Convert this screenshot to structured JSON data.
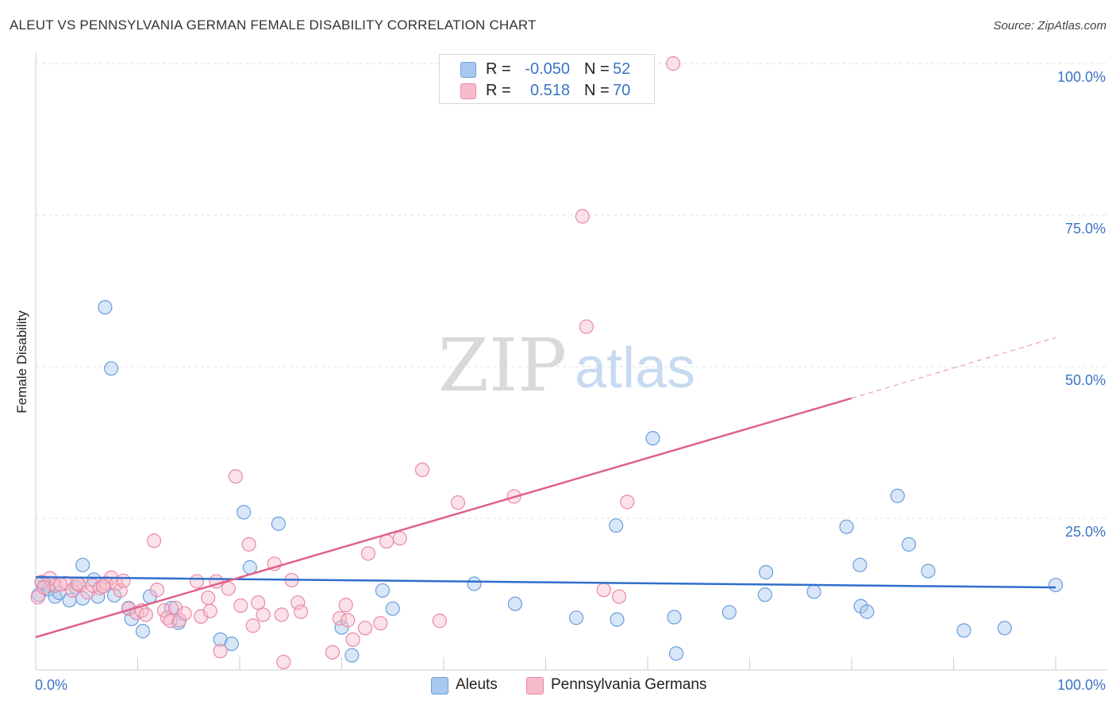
{
  "title": "ALEUT VS PENNSYLVANIA GERMAN FEMALE DISABILITY CORRELATION CHART",
  "source": "Source: ZipAtlas.com",
  "watermark": {
    "zip": "ZIP",
    "atlas": "atlas"
  },
  "legend": {
    "rows": [
      {
        "r_label": "R =",
        "r_value": "-0.050",
        "n_label": "N =",
        "n_value": "52",
        "color": "#a9c8f0",
        "edge": "#6a9fdc"
      },
      {
        "r_label": "R =",
        "r_value": "0.518",
        "n_label": "N =",
        "n_value": "70",
        "color": "#f7bccc",
        "edge": "#e989a6"
      }
    ]
  },
  "bottom_legend": [
    {
      "label": "Aleuts",
      "color": "#a9c8f0",
      "edge": "#6a9fdc"
    },
    {
      "label": "Pennsylvania Germans",
      "color": "#f7bccc",
      "edge": "#e989a6"
    }
  ],
  "chart_data": {
    "type": "scatter",
    "title": "ALEUT VS PENNSYLVANIA GERMAN FEMALE DISABILITY CORRELATION CHART",
    "xlabel": "",
    "ylabel": "Female Disability",
    "xlim": [
      0,
      100
    ],
    "ylim": [
      0,
      100
    ],
    "x_tick_labels": {
      "0": "0.0%",
      "100": "100.0%"
    },
    "y_tick_labels": {
      "25": "25.0%",
      "50": "50.0%",
      "75": "75.0%",
      "100": "100.0%"
    },
    "series": [
      {
        "name": "Aleuts",
        "color": "#6a9fdc",
        "fill": "#a9c8f0",
        "trend_color": "#2f6fcc",
        "trend": {
          "x": [
            0,
            100
          ],
          "y": [
            15.3,
            13.6
          ]
        },
        "points": [
          [
            0.3,
            12.4
          ],
          [
            0.9,
            14.1
          ],
          [
            1.3,
            13.3
          ],
          [
            1.9,
            12.1
          ],
          [
            2.3,
            12.7
          ],
          [
            3.3,
            11.5
          ],
          [
            3.9,
            13.7
          ],
          [
            4.6,
            11.8
          ],
          [
            4.6,
            17.3
          ],
          [
            5.7,
            14.9
          ],
          [
            6.1,
            12.1
          ],
          [
            6.8,
            59.8
          ],
          [
            7.4,
            49.7
          ],
          [
            7.7,
            12.3
          ],
          [
            9.1,
            10.2
          ],
          [
            9.4,
            8.4
          ],
          [
            10.5,
            6.4
          ],
          [
            11.2,
            12.1
          ],
          [
            13.3,
            10.2
          ],
          [
            14.0,
            7.8
          ],
          [
            18.1,
            5.0
          ],
          [
            19.2,
            4.3
          ],
          [
            20.4,
            26.0
          ],
          [
            21.0,
            16.9
          ],
          [
            23.8,
            24.1
          ],
          [
            30.0,
            7.0
          ],
          [
            31.0,
            2.4
          ],
          [
            34.0,
            13.1
          ],
          [
            35.0,
            10.1
          ],
          [
            43.0,
            14.2
          ],
          [
            47.0,
            10.9
          ],
          [
            53.0,
            8.6
          ],
          [
            56.9,
            23.8
          ],
          [
            57.0,
            8.3
          ],
          [
            60.5,
            38.2
          ],
          [
            62.6,
            8.7
          ],
          [
            62.8,
            2.7
          ],
          [
            68.0,
            9.5
          ],
          [
            71.5,
            12.4
          ],
          [
            71.6,
            16.1
          ],
          [
            76.3,
            12.9
          ],
          [
            79.5,
            23.6
          ],
          [
            80.8,
            17.3
          ],
          [
            80.9,
            10.5
          ],
          [
            81.5,
            9.6
          ],
          [
            84.5,
            28.7
          ],
          [
            85.6,
            20.7
          ],
          [
            87.5,
            16.3
          ],
          [
            91.0,
            6.5
          ],
          [
            95.0,
            6.9
          ],
          [
            100.0,
            14.0
          ],
          [
            0.6,
            14.4
          ]
        ]
      },
      {
        "name": "Pennsylvania Germans",
        "color": "#e989a6",
        "fill": "#f7bccc",
        "trend_color": "#e0608a",
        "trend": {
          "x": [
            0,
            80
          ],
          "y": [
            5.4,
            44.8
          ]
        },
        "trend_dashed_to": {
          "x": [
            80,
            100
          ],
          "y": [
            44.8,
            54.8
          ]
        },
        "points": [
          [
            0.2,
            12.0
          ],
          [
            0.6,
            14.5
          ],
          [
            1.4,
            15.1
          ],
          [
            1.9,
            13.9
          ],
          [
            2.9,
            14.3
          ],
          [
            3.6,
            13.1
          ],
          [
            4.3,
            14.0
          ],
          [
            5.1,
            12.8
          ],
          [
            5.6,
            13.9
          ],
          [
            6.3,
            13.5
          ],
          [
            6.9,
            14.3
          ],
          [
            7.4,
            15.2
          ],
          [
            7.9,
            14.2
          ],
          [
            8.3,
            13.1
          ],
          [
            8.6,
            14.7
          ],
          [
            9.1,
            10.1
          ],
          [
            9.9,
            9.4
          ],
          [
            10.4,
            9.8
          ],
          [
            10.8,
            9.1
          ],
          [
            11.6,
            21.3
          ],
          [
            11.9,
            13.2
          ],
          [
            12.6,
            9.8
          ],
          [
            12.9,
            8.6
          ],
          [
            13.2,
            8.1
          ],
          [
            13.7,
            10.2
          ],
          [
            14.1,
            8.2
          ],
          [
            14.6,
            9.3
          ],
          [
            15.8,
            14.6
          ],
          [
            16.2,
            8.8
          ],
          [
            16.9,
            11.9
          ],
          [
            17.1,
            9.7
          ],
          [
            17.7,
            14.6
          ],
          [
            18.1,
            3.1
          ],
          [
            18.9,
            13.4
          ],
          [
            19.6,
            31.9
          ],
          [
            20.1,
            10.6
          ],
          [
            20.9,
            20.7
          ],
          [
            21.3,
            7.3
          ],
          [
            21.8,
            11.1
          ],
          [
            22.3,
            9.1
          ],
          [
            23.4,
            17.5
          ],
          [
            24.1,
            9.1
          ],
          [
            24.3,
            1.3
          ],
          [
            25.1,
            14.8
          ],
          [
            25.7,
            11.1
          ],
          [
            26.0,
            9.6
          ],
          [
            29.1,
            2.9
          ],
          [
            29.8,
            8.5
          ],
          [
            30.4,
            10.7
          ],
          [
            30.6,
            8.2
          ],
          [
            31.1,
            5.0
          ],
          [
            32.3,
            6.9
          ],
          [
            32.6,
            19.2
          ],
          [
            34.4,
            21.2
          ],
          [
            33.8,
            7.7
          ],
          [
            35.7,
            21.7
          ],
          [
            37.9,
            33.0
          ],
          [
            39.6,
            8.1
          ],
          [
            41.4,
            27.6
          ],
          [
            46.9,
            28.6
          ],
          [
            53.6,
            74.8
          ],
          [
            54.0,
            56.6
          ],
          [
            55.7,
            13.2
          ],
          [
            57.2,
            12.1
          ],
          [
            58.0,
            27.7
          ],
          [
            62.5,
            100.0
          ],
          [
            0.8,
            13.6
          ],
          [
            2.4,
            14.1
          ],
          [
            4.1,
            14.2
          ],
          [
            6.6,
            13.8
          ]
        ]
      }
    ]
  }
}
